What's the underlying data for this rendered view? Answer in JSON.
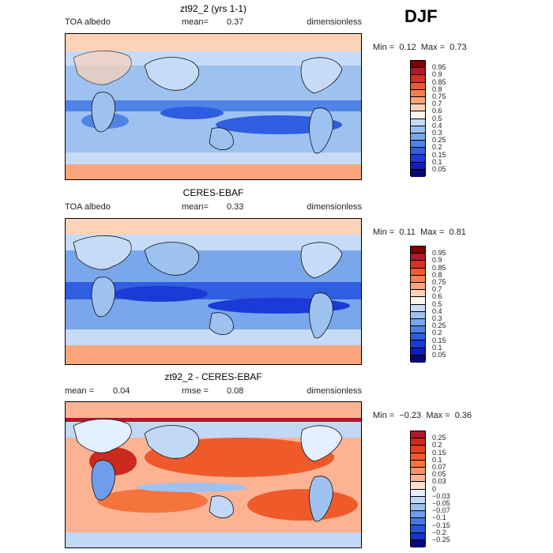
{
  "season": "DJF",
  "panels": [
    {
      "title": "zt92_2 (yrs 1-1)",
      "left_label": "TOA albedo",
      "mid_label": "mean=",
      "mid_value": "0.37",
      "right_label": "dimensionless",
      "min_label": "Min =",
      "min_value": "0.12",
      "max_label": "Max =",
      "max_value": "0.73",
      "levels": [
        "0.95",
        "0.9",
        "0.85",
        "0.8",
        "0.75",
        "0.7",
        "0.6",
        "0.5",
        "0.4",
        "0.3",
        "0.25",
        "0.2",
        "0.15",
        "0.1",
        "0.05"
      ],
      "colors": [
        "#7f0000",
        "#b2182b",
        "#d6301f",
        "#ef5a2f",
        "#f7804f",
        "#fba57d",
        "#fcd2b8",
        "#fff5ec",
        "#c6dbf7",
        "#9ec2f0",
        "#7aa7ec",
        "#4f83e6",
        "#2f5ee0",
        "#1c3ad6",
        "#0f1fb8",
        "#08086e"
      ]
    },
    {
      "title": "CERES-EBAF",
      "left_label": "TOA albedo",
      "mid_label": "mean=",
      "mid_value": "0.33",
      "right_label": "dimensionless",
      "min_label": "Min =",
      "min_value": "0.11",
      "max_label": "Max =",
      "max_value": "0.81",
      "levels": [
        "0.95",
        "0.9",
        "0.85",
        "0.8",
        "0.75",
        "0.7",
        "0.6",
        "0.5",
        "0.4",
        "0.3",
        "0.25",
        "0.2",
        "0.15",
        "0.1",
        "0.05"
      ],
      "colors": [
        "#7f0000",
        "#b2182b",
        "#d6301f",
        "#ef5a2f",
        "#f7804f",
        "#fba57d",
        "#fcd2b8",
        "#fff5ec",
        "#c6dbf7",
        "#9ec2f0",
        "#7aa7ec",
        "#4f83e6",
        "#2f5ee0",
        "#1c3ad6",
        "#0f1fb8",
        "#08086e"
      ]
    },
    {
      "title": "zt92_2 - CERES-EBAF",
      "left_label": "mean =",
      "left_value": "0.04",
      "mid_label": "rmse =",
      "mid_value": "0.08",
      "right_label": "dimensionless",
      "min_label": "Min =",
      "min_value": "−0.23",
      "max_label": "Max =",
      "max_value": "0.36",
      "levels": [
        "0.25",
        "0.2",
        "0.15",
        "0.1",
        "0.07",
        "0.05",
        "0.03",
        "0",
        "−0.03",
        "−0.05",
        "−0.07",
        "−0.1",
        "−0.15",
        "−0.2",
        "−0.25"
      ],
      "colors": [
        "#b2182b",
        "#cc2a1e",
        "#e2401e",
        "#f05a2a",
        "#f5733c",
        "#f99068",
        "#fbb394",
        "#fde0d0",
        "#e4efff",
        "#c2d8f7",
        "#9ec2f0",
        "#6f9ceb",
        "#4a78e3",
        "#2a52db",
        "#1532c8",
        "#08087a"
      ]
    }
  ],
  "chart_data": [
    {
      "type": "heatmap",
      "title": "zt92_2 (yrs 1-1)",
      "variable": "TOA albedo",
      "units": "dimensionless",
      "mean": 0.37,
      "min": 0.12,
      "max": 0.73,
      "contour_levels": [
        0.05,
        0.1,
        0.15,
        0.2,
        0.25,
        0.3,
        0.4,
        0.5,
        0.6,
        0.7,
        0.75,
        0.8,
        0.85,
        0.9,
        0.95
      ]
    },
    {
      "type": "heatmap",
      "title": "CERES-EBAF",
      "variable": "TOA albedo",
      "units": "dimensionless",
      "mean": 0.33,
      "min": 0.11,
      "max": 0.81,
      "contour_levels": [
        0.05,
        0.1,
        0.15,
        0.2,
        0.25,
        0.3,
        0.4,
        0.5,
        0.6,
        0.7,
        0.75,
        0.8,
        0.85,
        0.9,
        0.95
      ]
    },
    {
      "type": "heatmap",
      "title": "zt92_2 - CERES-EBAF",
      "units": "dimensionless",
      "mean": 0.04,
      "rmse": 0.08,
      "min": -0.23,
      "max": 0.36,
      "contour_levels": [
        -0.25,
        -0.2,
        -0.15,
        -0.1,
        -0.07,
        -0.05,
        -0.03,
        0,
        0.03,
        0.05,
        0.07,
        0.1,
        0.15,
        0.2,
        0.25
      ]
    }
  ]
}
